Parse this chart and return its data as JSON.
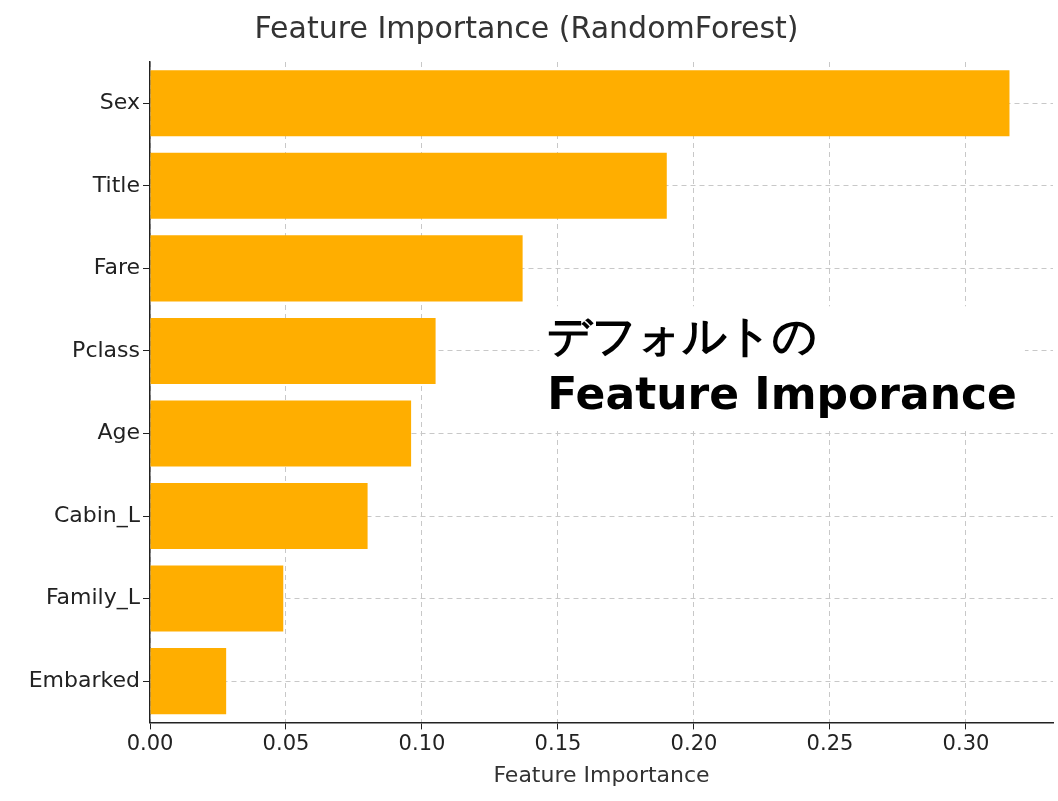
{
  "chart_data": {
    "type": "bar",
    "orientation": "horizontal",
    "title": "Feature Importance (RandomForest)",
    "xlabel": "Feature Importance",
    "categories": [
      "Sex",
      "Title",
      "Fare",
      "Pclass",
      "Age",
      "Cabin_L",
      "Family_L",
      "Embarked"
    ],
    "values": [
      0.316,
      0.19,
      0.137,
      0.105,
      0.096,
      0.08,
      0.049,
      0.028
    ],
    "color": "#ffae00",
    "xlim": [
      0,
      0.332
    ],
    "xticks": [
      {
        "value": 0,
        "label": "0.00"
      },
      {
        "value": 0.05,
        "label": "0.05"
      },
      {
        "value": 0.1,
        "label": "0.10"
      },
      {
        "value": 0.15,
        "label": "0.15"
      },
      {
        "value": 0.2,
        "label": "0.20"
      },
      {
        "value": 0.25,
        "label": "0.25"
      },
      {
        "value": 0.3,
        "label": "0.30"
      }
    ],
    "grid": true,
    "legend": false,
    "annotations": [
      "デフォルトの\nFeature Imporance"
    ]
  }
}
